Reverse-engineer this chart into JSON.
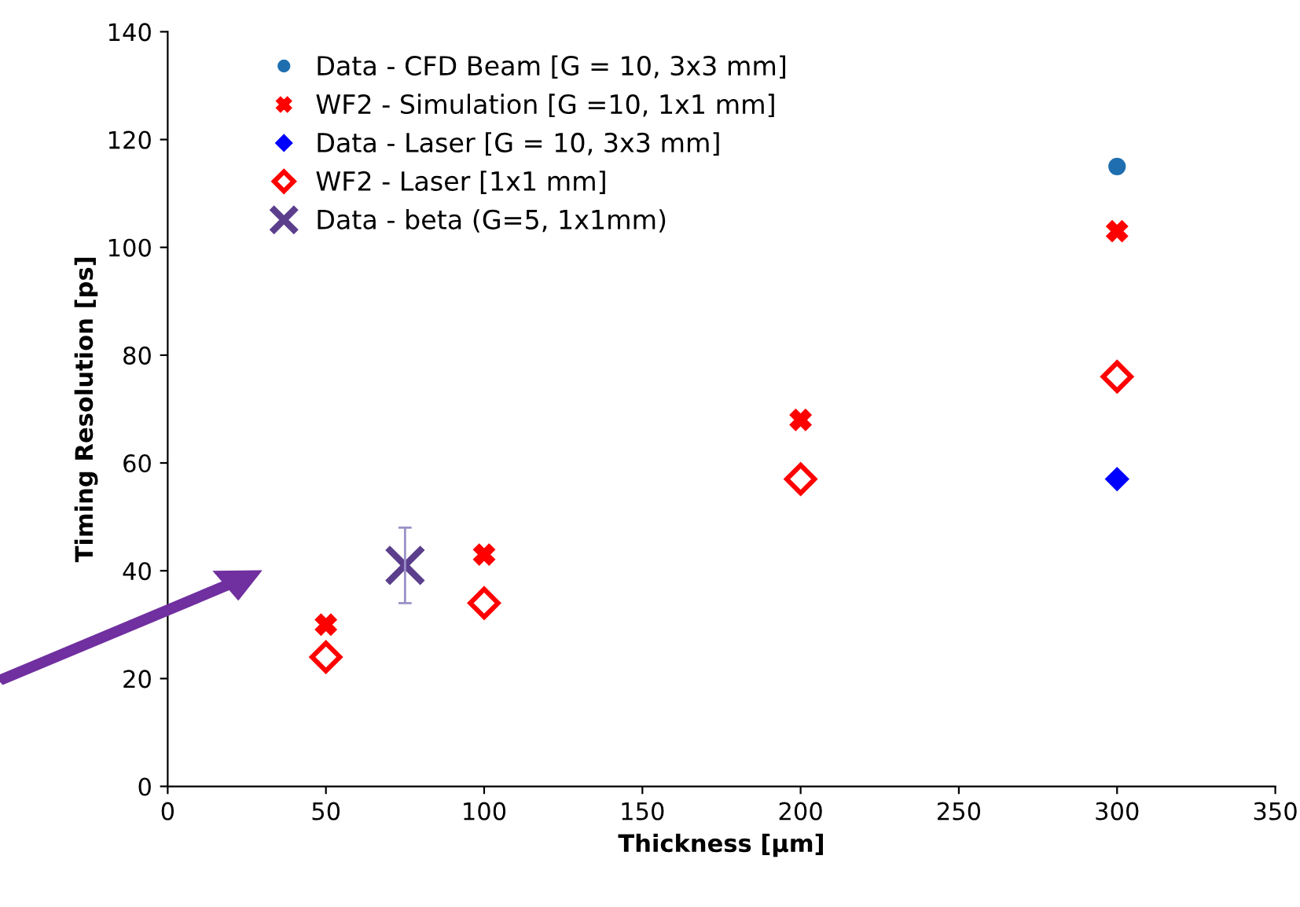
{
  "chart_data": {
    "type": "scatter",
    "xlabel": "Thickness [µm]",
    "ylabel": "Timing Resolution [ps]",
    "xlim": [
      0,
      350
    ],
    "xticks": [
      0,
      50,
      100,
      150,
      200,
      250,
      300,
      350
    ],
    "ylim": [
      0,
      140
    ],
    "yticks": [
      0,
      20,
      40,
      60,
      80,
      100,
      120,
      140
    ],
    "grid": false,
    "legend": "top left",
    "series": [
      {
        "name": "Data - CFD Beam [G = 10, 3x3 mm]",
        "color": "#1f6fb0",
        "marker": "circle",
        "x": [
          300
        ],
        "values": [
          115
        ]
      },
      {
        "name": "WF2 - Simulation [G =10, 1x1 mm]",
        "color": "#ff0000",
        "marker": "cross",
        "x": [
          50,
          100,
          200,
          300
        ],
        "values": [
          30,
          43,
          68,
          103
        ]
      },
      {
        "name": "Data - Laser [G = 10, 3x3 mm]",
        "color": "#0000ff",
        "marker": "diamond",
        "x": [
          300
        ],
        "values": [
          57
        ]
      },
      {
        "name": "WF2 - Laser [1x1 mm]",
        "color": "#ff0000",
        "marker": "diamond",
        "x": [
          50,
          100,
          200,
          300
        ],
        "values": [
          24,
          34,
          57,
          76
        ]
      },
      {
        "name": "Data - beta (G=5, 1x1mm)",
        "color": "#5b3f8c",
        "marker": "x",
        "x": [
          75
        ],
        "values": [
          41
        ],
        "errors": [
          7
        ]
      }
    ]
  }
}
